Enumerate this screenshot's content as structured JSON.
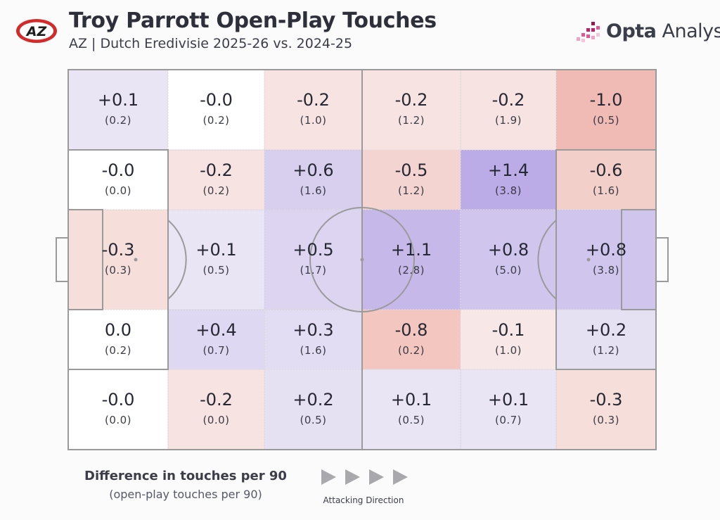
{
  "header": {
    "title": "Troy Parrott Open-Play Touches",
    "subtitle": "AZ | Dutch Eredivisie 2025-26 vs. 2024-25",
    "team_badge_text": "AZ",
    "brand_bold": "Opta",
    "brand_light": " Analyst"
  },
  "colors": {
    "positive": "#8b6fd6",
    "negative": "#e8857a",
    "pitch_line": "#9a9a9a",
    "background": "#fbfbfb"
  },
  "chart_data": {
    "type": "heatmap",
    "title": "Troy Parrott Open-Play Touches",
    "subtitle": "AZ | Dutch Eredivisie 2025-26 vs. 2024-25",
    "columns": 6,
    "rows": 5,
    "attacking_direction": "left-to-right",
    "zones": [
      [
        {
          "diff": "+0.1",
          "base": "(0.2)",
          "value": 0.1
        },
        {
          "diff": "-0.0",
          "base": "(0.2)",
          "value": 0.0
        },
        {
          "diff": "-0.2",
          "base": "(1.0)",
          "value": -0.2
        },
        {
          "diff": "-0.2",
          "base": "(1.2)",
          "value": -0.2
        },
        {
          "diff": "-0.2",
          "base": "(1.9)",
          "value": -0.2
        },
        {
          "diff": "-1.0",
          "base": "(0.5)",
          "value": -1.0
        }
      ],
      [
        {
          "diff": "-0.0",
          "base": "(0.0)",
          "value": 0.0
        },
        {
          "diff": "-0.2",
          "base": "(0.2)",
          "value": -0.2
        },
        {
          "diff": "+0.6",
          "base": "(1.6)",
          "value": 0.6
        },
        {
          "diff": "-0.5",
          "base": "(1.2)",
          "value": -0.5
        },
        {
          "diff": "+1.4",
          "base": "(3.8)",
          "value": 1.4
        },
        {
          "diff": "-0.6",
          "base": "(1.6)",
          "value": -0.6
        }
      ],
      [
        {
          "diff": "-0.3",
          "base": "(0.3)",
          "value": -0.3
        },
        {
          "diff": "+0.1",
          "base": "(0.5)",
          "value": 0.1
        },
        {
          "diff": "+0.5",
          "base": "(1.7)",
          "value": 0.5
        },
        {
          "diff": "+1.1",
          "base": "(2.8)",
          "value": 1.1
        },
        {
          "diff": "+0.8",
          "base": "(5.0)",
          "value": 0.8
        },
        {
          "diff": "+0.8",
          "base": "(3.8)",
          "value": 0.8
        }
      ],
      [
        {
          "diff": "0.0",
          "base": "(0.2)",
          "value": 0.0
        },
        {
          "diff": "+0.4",
          "base": "(0.7)",
          "value": 0.4
        },
        {
          "diff": "+0.3",
          "base": "(1.6)",
          "value": 0.3
        },
        {
          "diff": "-0.8",
          "base": "(0.2)",
          "value": -0.8
        },
        {
          "diff": "-0.1",
          "base": "(1.0)",
          "value": -0.1
        },
        {
          "diff": "+0.2",
          "base": "(1.2)",
          "value": 0.2
        }
      ],
      [
        {
          "diff": "-0.0",
          "base": "(0.0)",
          "value": 0.0
        },
        {
          "diff": "-0.2",
          "base": "(0.0)",
          "value": -0.2
        },
        {
          "diff": "+0.2",
          "base": "(0.5)",
          "value": 0.2
        },
        {
          "diff": "+0.1",
          "base": "(0.5)",
          "value": 0.1
        },
        {
          "diff": "+0.1",
          "base": "(0.7)",
          "value": 0.1
        },
        {
          "diff": "-0.3",
          "base": "(0.3)",
          "value": -0.3
        }
      ]
    ],
    "legend_title": "Difference in touches per 90",
    "legend_subtitle": "(open-play touches per 90)",
    "direction_label": "Attacking Direction"
  }
}
